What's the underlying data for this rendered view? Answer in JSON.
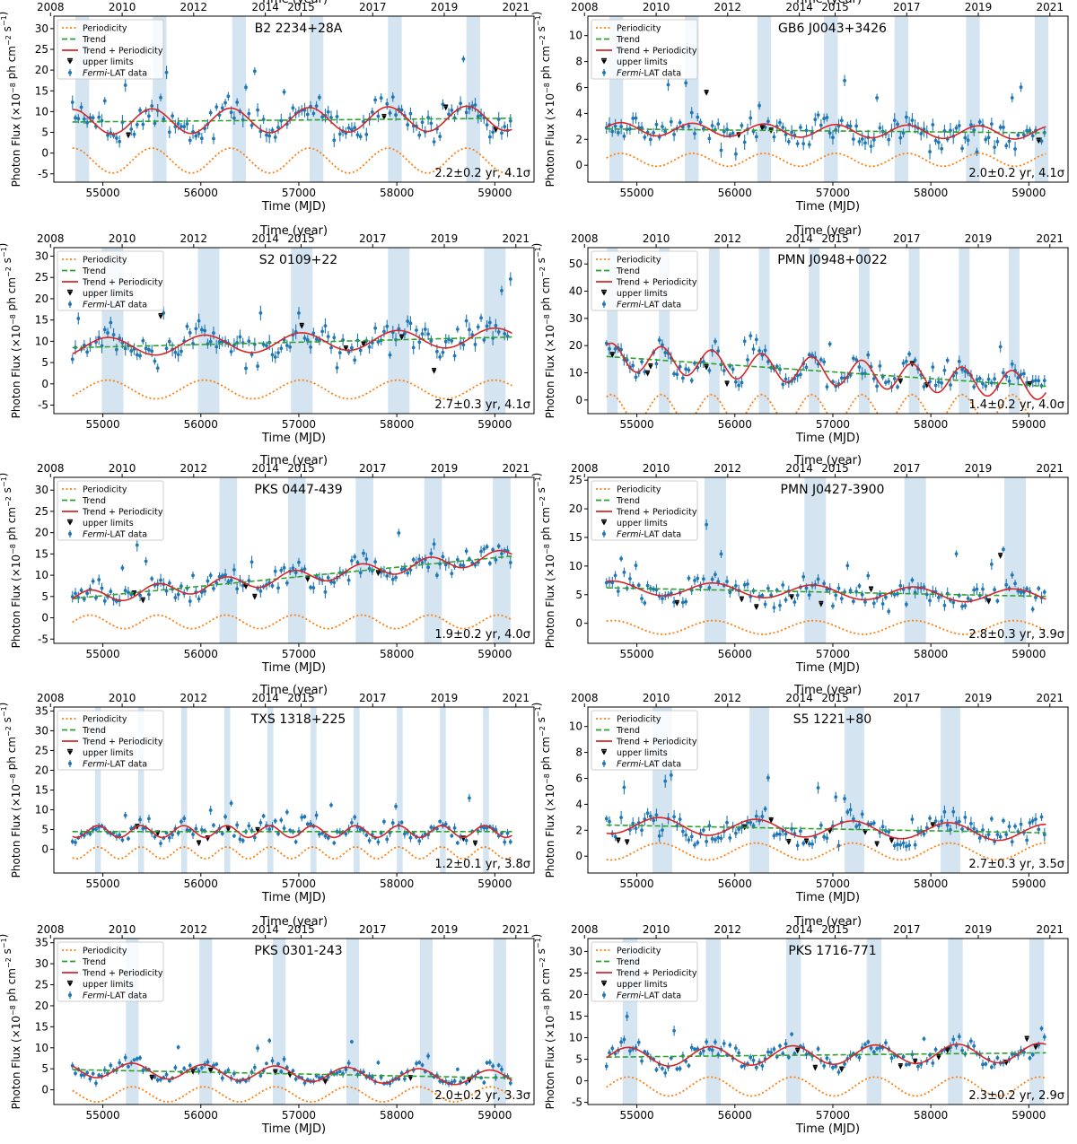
{
  "figure": {
    "x_axis_label": "Time (MJD)",
    "top_axis_label": "Time (year)",
    "y_axis_label_main": "Photon Flux  (×10",
    "y_axis_label_exp": "−8",
    "y_axis_label_tail": " ph cm",
    "y_axis_label_exp2": "−2",
    "y_axis_label_tail2": " s",
    "y_axis_label_exp3": "−1",
    "y_axis_label_end": ")",
    "legend": {
      "periodicity": "Periodicity",
      "trend": "Trend",
      "trend_periodicity": "Trend + Periodicity",
      "upper_limits": "upper limits",
      "fermi_prefix": "Fermi",
      "fermi_suffix": "-LAT data"
    },
    "colors": {
      "periodicity": "#ff7f0e",
      "trend": "#2ca02c",
      "trend_periodicity": "#d62728",
      "data": "#1f77b4",
      "upper_limits": "#000000",
      "band": "#cfe2f0"
    }
  },
  "chart_data": [
    {
      "type": "scatter",
      "title": "B2 2234+28A",
      "annotation": "2.2±0.2 yr, 4.1σ",
      "period_yr": 2.2,
      "ylim": [
        -7,
        33
      ],
      "yticks": [
        -5,
        0,
        5,
        10,
        15,
        20,
        25,
        30
      ],
      "base": 7.5,
      "slope": 0.9,
      "amp": 3.0,
      "noise": 3.0,
      "phase_mjd": 55500,
      "bands": [
        54790,
        55580,
        56390,
        57180,
        57980,
        58780
      ],
      "band_width": 140,
      "xticks": [
        55000,
        56000,
        57000,
        58000,
        59000
      ],
      "year_ticks": [
        "2008",
        "2010",
        "2012",
        "2014",
        "2015",
        "2017",
        "2019",
        "2021"
      ],
      "xlim": [
        54500,
        59400
      ]
    },
    {
      "type": "scatter",
      "title": "GB6 J0043+3426",
      "annotation": "2.0±0.2 yr, 4.1σ",
      "period_yr": 2.0,
      "ylim": [
        -1.3,
        11.5
      ],
      "yticks": [
        0,
        2,
        4,
        6,
        8,
        10
      ],
      "base": 2.8,
      "slope": -0.3,
      "amp": 0.5,
      "noise": 1.0,
      "phase_mjd": 56300,
      "bands": [
        54790,
        55560,
        56300,
        56980,
        57700,
        58430,
        59130
      ],
      "band_width": 140,
      "xticks": [
        55000,
        56000,
        57000,
        58000,
        59000
      ],
      "year_ticks": [
        "2008",
        "2010",
        "2012",
        "2014",
        "2015",
        "2017",
        "2019",
        "2021"
      ],
      "xlim": [
        54500,
        59400
      ]
    },
    {
      "type": "scatter",
      "title": "S2 0109+22",
      "annotation": "2.7±0.3 yr, 4.1σ",
      "period_yr": 2.7,
      "ylim": [
        -7,
        32
      ],
      "yticks": [
        -5,
        0,
        5,
        10,
        15,
        20,
        25,
        30
      ],
      "base": 8.5,
      "slope": 2.5,
      "amp": 2.2,
      "noise": 3.0,
      "phase_mjd": 55050,
      "bands": [
        55100,
        56080,
        57030,
        58020,
        59000
      ],
      "band_width": 220,
      "xticks": [
        55000,
        56000,
        57000,
        58000,
        59000
      ],
      "year_ticks": [
        "2008",
        "2010",
        "2012",
        "2014",
        "2015",
        "2017",
        "2019",
        "2021"
      ],
      "xlim": [
        54500,
        59400
      ]
    },
    {
      "type": "scatter",
      "title": "PMN J0948+0022",
      "annotation": "1.4±0.2 yr, 4.0σ",
      "period_yr": 1.4,
      "ylim": [
        -5,
        56
      ],
      "yticks": [
        0,
        10,
        20,
        30,
        40,
        50
      ],
      "base": 16,
      "slope": -11,
      "amp": 5,
      "noise": 4.0,
      "phase_mjd": 55250,
      "bands": [
        54750,
        55280,
        55790,
        56300,
        56810,
        57320,
        57830,
        58340,
        58850
      ],
      "band_width": 110,
      "xticks": [
        55000,
        56000,
        57000,
        58000,
        59000
      ],
      "year_ticks": [
        "2008",
        "2010",
        "2012",
        "2014",
        "2015",
        "2017",
        "2019",
        "2021"
      ],
      "xlim": [
        54500,
        59400
      ]
    },
    {
      "type": "scatter",
      "title": "PKS 0447-439",
      "annotation": "1.9±0.2 yr, 4.0σ",
      "period_yr": 1.9,
      "ylim": [
        -6,
        33
      ],
      "yticks": [
        -5,
        0,
        5,
        10,
        15,
        20,
        25,
        30
      ],
      "base": 4.5,
      "slope": 10,
      "amp": 1.6,
      "noise": 2.5,
      "phase_mjd": 56950,
      "bands": [
        56280,
        56980,
        57670,
        58370,
        59070
      ],
      "band_width": 180,
      "xticks": [
        55000,
        56000,
        57000,
        58000,
        59000
      ],
      "year_ticks": [
        "2008",
        "2010",
        "2012",
        "2014",
        "2015",
        "2017",
        "2019",
        "2021"
      ],
      "xlim": [
        54500,
        59400
      ]
    },
    {
      "type": "scatter",
      "title": "PMN J0427-3900",
      "annotation": "2.8±0.3 yr, 3.9σ",
      "period_yr": 2.8,
      "ylim": [
        -3.5,
        25.5
      ],
      "yticks": [
        0,
        5,
        10,
        15,
        20,
        25
      ],
      "base": 6.2,
      "slope": -1.5,
      "amp": 1.2,
      "noise": 1.8,
      "phase_mjd": 55780,
      "bands": [
        55800,
        56820,
        57840,
        58860
      ],
      "band_width": 220,
      "xticks": [
        55000,
        56000,
        57000,
        58000,
        59000
      ],
      "year_ticks": [
        "2008",
        "2010",
        "2012",
        "2014",
        "2015",
        "2017",
        "2019",
        "2021"
      ],
      "xlim": [
        54500,
        59400
      ]
    },
    {
      "type": "scatter",
      "title": "TXS 1318+225",
      "annotation": "1.2±0.1 yr, 3.8σ",
      "period_yr": 1.2,
      "ylim": [
        -6,
        36
      ],
      "yticks": [
        0,
        5,
        10,
        15,
        20,
        25,
        30,
        35
      ],
      "base": 4.5,
      "slope": 0,
      "amp": 1.5,
      "noise": 2.0,
      "phase_mjd": 54950,
      "bands": [
        54950,
        55390,
        55830,
        56270,
        56710,
        57150,
        57590,
        58030,
        58470,
        58910
      ],
      "band_width": 60,
      "xticks": [
        55000,
        56000,
        57000,
        58000,
        59000
      ],
      "year_ticks": [
        "2008",
        "2010",
        "2012",
        "2014",
        "2015",
        "2017",
        "2019",
        "2021"
      ],
      "xlim": [
        54500,
        59400
      ]
    },
    {
      "type": "scatter",
      "title": "S5 1221+80",
      "annotation": "2.7±0.3 yr, 3.5σ",
      "period_yr": 2.7,
      "ylim": [
        -1.3,
        11.5
      ],
      "yticks": [
        0,
        2,
        4,
        6,
        8,
        10
      ],
      "base": 2.4,
      "slope": -0.6,
      "amp": 0.65,
      "noise": 0.9,
      "phase_mjd": 55230,
      "bands": [
        55260,
        56250,
        57220,
        58200
      ],
      "band_width": 200,
      "xticks": [
        55000,
        56000,
        57000,
        58000,
        59000
      ],
      "year_ticks": [
        "2008",
        "2010",
        "2012",
        "2014",
        "2015",
        "2017",
        "2019",
        "2021"
      ],
      "xlim": [
        54500,
        59400
      ]
    },
    {
      "type": "scatter",
      "title": "PKS 0301-243",
      "annotation": "2.0±0.2 yr, 3.3σ",
      "period_yr": 2.0,
      "ylim": [
        -3.5,
        36
      ],
      "yticks": [
        0,
        5,
        10,
        15,
        20,
        25,
        30,
        35
      ],
      "base": 4.8,
      "slope": -2,
      "amp": 1.8,
      "noise": 1.6,
      "phase_mjd": 55300,
      "bands": [
        55300,
        56050,
        56800,
        57550,
        58300,
        59050
      ],
      "band_width": 130,
      "xticks": [
        55000,
        56000,
        57000,
        58000,
        59000
      ],
      "year_ticks": [
        "2008",
        "2010",
        "2012",
        "2014",
        "2015",
        "2017",
        "2019",
        "2021"
      ],
      "xlim": [
        54500,
        59400
      ]
    },
    {
      "type": "scatter",
      "title": "PKS 1716-771",
      "annotation": "2.3±0.2 yr, 2.9σ",
      "period_yr": 2.3,
      "ylim": [
        -5.5,
        33
      ],
      "yticks": [
        -5,
        0,
        5,
        10,
        15,
        20,
        25,
        30
      ],
      "base": 5.5,
      "slope": 1,
      "amp": 2.2,
      "noise": 2.0,
      "phase_mjd": 55750,
      "bands": [
        54930,
        55780,
        56600,
        57420,
        58250,
        59080
      ],
      "band_width": 150,
      "xticks": [
        55000,
        56000,
        57000,
        58000,
        59000
      ],
      "year_ticks": [
        "2008",
        "2010",
        "2012",
        "2014",
        "2015",
        "2017",
        "2019",
        "2021"
      ],
      "xlim": [
        54500,
        59400
      ]
    }
  ]
}
